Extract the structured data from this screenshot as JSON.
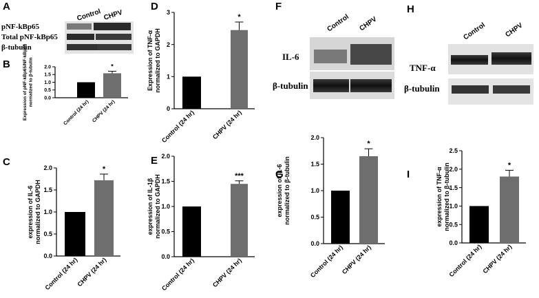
{
  "panels": [
    {
      "id": "A",
      "kind": "blot"
    },
    {
      "id": "B",
      "kind": "chart"
    },
    {
      "id": "C",
      "kind": "chart"
    },
    {
      "id": "D",
      "kind": "chart"
    },
    {
      "id": "E",
      "kind": "chart"
    },
    {
      "id": "F",
      "kind": "blot"
    },
    {
      "id": "G",
      "kind": "chart"
    },
    {
      "id": "H",
      "kind": "blot"
    },
    {
      "id": "I",
      "kind": "chart"
    }
  ],
  "blots": {
    "A": {
      "lanes": [
        "Control",
        "CHPV"
      ],
      "rows": [
        "pNF-kBp65",
        "Total pNF-kBp65",
        "β-tubulin"
      ]
    },
    "F": {
      "lanes": [
        "Control",
        "CHPV"
      ],
      "rows": [
        "IL-6",
        "β-tubulin"
      ]
    },
    "H": {
      "lanes": [
        "Control",
        "CHPV"
      ],
      "rows": [
        "TNF-α",
        "β-tubulin"
      ]
    }
  },
  "chart_data": [
    {
      "panel": "B",
      "type": "bar",
      "categories": [
        "Control (24 hr)",
        "CHPV (24 hr)"
      ],
      "values": [
        1.0,
        1.58
      ],
      "errors": [
        0,
        0.13
      ],
      "ylabel": "Expression of pNF-kBp65/NF-kBp65 normalized to β-tubulin",
      "ylim": [
        0,
        2.0
      ],
      "yticks": [
        0,
        0.5,
        1.0,
        1.5,
        2.0
      ],
      "ytick_labels": [
        "0.0",
        "0.5",
        "1.0",
        "1.5",
        "2.0"
      ],
      "significance": [
        null,
        "*"
      ],
      "colors": [
        "#000000",
        "#6e6e6e"
      ]
    },
    {
      "panel": "C",
      "type": "bar",
      "categories": [
        "Control (24 hr)",
        "CHPV (24 hr)"
      ],
      "values": [
        1.0,
        1.72
      ],
      "errors": [
        0,
        0.14
      ],
      "ylabel": "expression of IL-6 normalized to GAPDH",
      "ylim": [
        0,
        2.0
      ],
      "yticks": [
        0,
        0.5,
        1.0,
        1.5,
        2.0
      ],
      "ytick_labels": [
        "0.0",
        "0.5",
        "1.0",
        "1.5",
        "2.0"
      ],
      "significance": [
        null,
        "*"
      ],
      "colors": [
        "#000000",
        "#6e6e6e"
      ]
    },
    {
      "panel": "D",
      "type": "bar",
      "categories": [
        "Control (24 hr)",
        "CHPV (24 hr)"
      ],
      "values": [
        1.0,
        2.45
      ],
      "errors": [
        0,
        0.25
      ],
      "ylabel": "Expression of TNF-α normalized to GAPDH",
      "ylim": [
        0,
        3
      ],
      "yticks": [
        0,
        1,
        2,
        3
      ],
      "ytick_labels": [
        "0",
        "1",
        "2",
        "3"
      ],
      "significance": [
        null,
        "*"
      ],
      "colors": [
        "#000000",
        "#6e6e6e"
      ]
    },
    {
      "panel": "E",
      "type": "bar",
      "categories": [
        "Control (24 hr)",
        "CHPV (24 hr)"
      ],
      "values": [
        1.0,
        1.45
      ],
      "errors": [
        0,
        0.06
      ],
      "ylabel": "expression of IL-1β normalized to GAPDH",
      "ylim": [
        0,
        2.0
      ],
      "yticks": [
        0,
        0.5,
        1.0,
        1.5,
        2.0
      ],
      "ytick_labels": [
        "0.0",
        "0.5",
        "1.0",
        "1.5",
        "2.0"
      ],
      "significance": [
        null,
        "***"
      ],
      "colors": [
        "#000000",
        "#6e6e6e"
      ]
    },
    {
      "panel": "G",
      "type": "bar",
      "categories": [
        "Control (24 hr)",
        "CHPV (24 hr)"
      ],
      "values": [
        1.0,
        1.65
      ],
      "errors": [
        0,
        0.14
      ],
      "ylabel": "expression of IL-6 normalized to β-tubulin",
      "ylim": [
        0,
        2.0
      ],
      "yticks": [
        0,
        0.5,
        1.0,
        1.5,
        2.0
      ],
      "ytick_labels": [
        "0.0",
        "0.5",
        "1.0",
        "1.5",
        "2.0"
      ],
      "significance": [
        null,
        "*"
      ],
      "colors": [
        "#000000",
        "#6e6e6e"
      ]
    },
    {
      "panel": "I",
      "type": "bar",
      "categories": [
        "Control (24 hr)",
        "CHPV (24 hr)"
      ],
      "values": [
        1.0,
        1.8
      ],
      "errors": [
        0,
        0.17
      ],
      "ylabel": "expression of TNF-α normalized to β-tubulin",
      "ylim": [
        0,
        2.5
      ],
      "yticks": [
        0,
        0.5,
        1.0,
        1.5,
        2.0,
        2.5
      ],
      "ytick_labels": [
        "0.0",
        "0.5",
        "1.0",
        "1.5",
        "2.0",
        "2.5"
      ],
      "significance": [
        null,
        "*"
      ],
      "colors": [
        "#000000",
        "#6e6e6e"
      ]
    }
  ]
}
